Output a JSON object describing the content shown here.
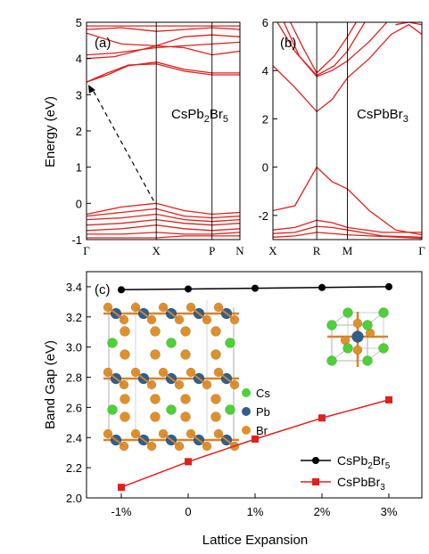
{
  "figure": {
    "colors": {
      "band": "#e0201c",
      "cspb2br5": "#000000",
      "cspbbr3": "#e0201c",
      "cs": "#4cd137",
      "pb": "#2f5f8a",
      "br": "#e0902a"
    }
  },
  "chart_data": [
    {
      "type": "line",
      "panel_label": "(a)",
      "compound": "CsPb2Br5",
      "compound_parts": [
        "CsPb",
        "2",
        "Br",
        "5"
      ],
      "ylabel": "Energy (eV)",
      "ylim": [
        -1,
        5
      ],
      "yticks": [
        "-1",
        "0",
        "1",
        "2",
        "3",
        "4",
        "5"
      ],
      "xticks": [
        "Γ",
        "X",
        "P",
        "N"
      ],
      "k_positions": [
        0,
        1,
        1.8,
        2.2
      ],
      "indirect_gap_arrow": {
        "from": [
          0,
          3.35
        ],
        "to": [
          1,
          0.0
        ]
      },
      "bands": [
        [
          [
            0,
            -0.95
          ],
          [
            0.5,
            -0.95
          ],
          [
            1,
            -0.95
          ],
          [
            1.4,
            -0.9
          ],
          [
            1.8,
            -0.9
          ],
          [
            2.2,
            -0.9
          ]
        ],
        [
          [
            0,
            -0.85
          ],
          [
            0.5,
            -0.85
          ],
          [
            1,
            -0.8
          ],
          [
            1.4,
            -0.85
          ],
          [
            1.8,
            -0.85
          ],
          [
            2.2,
            -0.8
          ]
        ],
        [
          [
            0,
            -0.75
          ],
          [
            0.5,
            -0.7
          ],
          [
            1,
            -0.6
          ],
          [
            1.4,
            -0.7
          ],
          [
            1.8,
            -0.75
          ],
          [
            2.2,
            -0.7
          ]
        ],
        [
          [
            0,
            -0.6
          ],
          [
            0.5,
            -0.55
          ],
          [
            1,
            -0.45
          ],
          [
            1.4,
            -0.55
          ],
          [
            1.8,
            -0.6
          ],
          [
            2.2,
            -0.55
          ]
        ],
        [
          [
            0,
            -0.45
          ],
          [
            0.5,
            -0.4
          ],
          [
            1,
            -0.3
          ],
          [
            1.4,
            -0.45
          ],
          [
            1.8,
            -0.5
          ],
          [
            2.2,
            -0.45
          ]
        ],
        [
          [
            0,
            -0.35
          ],
          [
            0.5,
            -0.25
          ],
          [
            1,
            -0.15
          ],
          [
            1.4,
            -0.35
          ],
          [
            1.8,
            -0.4
          ],
          [
            2.2,
            -0.35
          ]
        ],
        [
          [
            0,
            -0.3
          ],
          [
            0.5,
            -0.1
          ],
          [
            1,
            0.0
          ],
          [
            1.4,
            -0.2
          ],
          [
            1.8,
            -0.3
          ],
          [
            2.2,
            -0.25
          ]
        ],
        [
          [
            0,
            3.35
          ],
          [
            0.3,
            3.55
          ],
          [
            0.6,
            3.8
          ],
          [
            1,
            3.9
          ],
          [
            1.4,
            3.7
          ],
          [
            1.8,
            3.6
          ],
          [
            2.2,
            3.6
          ]
        ],
        [
          [
            0,
            3.35
          ],
          [
            0.3,
            3.6
          ],
          [
            0.6,
            3.82
          ],
          [
            1,
            3.85
          ],
          [
            1.4,
            3.65
          ],
          [
            1.8,
            3.55
          ],
          [
            2.2,
            3.55
          ]
        ],
        [
          [
            0,
            4.0
          ],
          [
            0.4,
            4.05
          ],
          [
            1,
            4.35
          ],
          [
            1.4,
            4.3
          ],
          [
            1.8,
            4.1
          ],
          [
            2.2,
            4.2
          ]
        ],
        [
          [
            0,
            4.1
          ],
          [
            0.4,
            4.15
          ],
          [
            1,
            4.3
          ],
          [
            1.4,
            4.35
          ],
          [
            1.8,
            4.4
          ],
          [
            2.2,
            4.45
          ]
        ],
        [
          [
            0,
            4.7
          ],
          [
            0.5,
            4.4
          ],
          [
            1,
            4.35
          ],
          [
            1.4,
            4.6
          ],
          [
            1.8,
            4.65
          ],
          [
            2.2,
            4.6
          ]
        ],
        [
          [
            0,
            4.8
          ],
          [
            0.5,
            4.85
          ],
          [
            1,
            4.75
          ],
          [
            1.4,
            4.8
          ],
          [
            1.8,
            4.85
          ],
          [
            2.2,
            4.8
          ]
        ],
        [
          [
            0,
            4.9
          ],
          [
            0.5,
            4.9
          ],
          [
            1,
            4.9
          ],
          [
            1.4,
            4.9
          ],
          [
            1.8,
            4.9
          ],
          [
            2.2,
            4.9
          ]
        ]
      ]
    },
    {
      "type": "line",
      "panel_label": "(b)",
      "compound": "CsPbBr3",
      "compound_parts": [
        "CsPbBr",
        "3"
      ],
      "ylim": [
        -3,
        6
      ],
      "yticks": [
        "-2",
        "0",
        "2",
        "4",
        "6"
      ],
      "xticks": [
        "X",
        "R",
        "M",
        "Γ"
      ],
      "k_positions": [
        0,
        1,
        1.7,
        3.4
      ],
      "bands": [
        [
          [
            0,
            -1.8
          ],
          [
            0.5,
            -1.6
          ],
          [
            1,
            0.0
          ],
          [
            1.35,
            -0.6
          ],
          [
            1.7,
            -0.9
          ],
          [
            2.2,
            -1.8
          ],
          [
            2.8,
            -2.6
          ],
          [
            3.4,
            -2.8
          ]
        ],
        [
          [
            0,
            -2.6
          ],
          [
            0.5,
            -2.5
          ],
          [
            1,
            -2.2
          ],
          [
            1.35,
            -2.3
          ],
          [
            1.7,
            -2.5
          ],
          [
            2.5,
            -2.7
          ],
          [
            3.4,
            -2.7
          ]
        ],
        [
          [
            0,
            -2.75
          ],
          [
            0.5,
            -2.7
          ],
          [
            1,
            -2.45
          ],
          [
            1.35,
            -2.5
          ],
          [
            1.7,
            -2.6
          ],
          [
            2.5,
            -2.85
          ],
          [
            3.4,
            -2.9
          ]
        ],
        [
          [
            0,
            -2.9
          ],
          [
            0.5,
            -2.85
          ],
          [
            1,
            -2.7
          ],
          [
            1.7,
            -2.8
          ],
          [
            3.4,
            -2.95
          ]
        ],
        [
          [
            0,
            4.2
          ],
          [
            0.5,
            3.3
          ],
          [
            1,
            2.3
          ],
          [
            1.35,
            2.8
          ],
          [
            1.7,
            3.7
          ],
          [
            2.2,
            4.5
          ],
          [
            2.7,
            5.5
          ],
          [
            3.1,
            5.9
          ],
          [
            3.4,
            5.5
          ]
        ],
        [
          [
            0.1,
            6.0
          ],
          [
            0.5,
            4.8
          ],
          [
            1,
            3.75
          ],
          [
            1.35,
            4.0
          ],
          [
            1.7,
            4.4
          ],
          [
            2.2,
            5.2
          ],
          [
            2.6,
            6.0
          ]
        ],
        [
          [
            0.25,
            6.0
          ],
          [
            0.6,
            4.6
          ],
          [
            1,
            3.8
          ],
          [
            1.4,
            4.2
          ],
          [
            1.7,
            4.8
          ],
          [
            2.1,
            6.0
          ]
        ],
        [
          [
            0.4,
            6.0
          ],
          [
            0.7,
            4.9
          ],
          [
            1,
            3.9
          ],
          [
            1.4,
            4.6
          ],
          [
            1.7,
            5.4
          ],
          [
            1.9,
            6.0
          ]
        ],
        [
          [
            2.8,
            5.9
          ],
          [
            3.1,
            6.0
          ],
          [
            3.4,
            5.9
          ]
        ]
      ]
    },
    {
      "type": "line",
      "panel_label": "(c)",
      "ylabel": "Band Gap (eV)",
      "xlabel": "Lattice Expansion",
      "categories": [
        "-1%",
        "0",
        "1%",
        "2%",
        "3%"
      ],
      "ylim": [
        2.0,
        3.5
      ],
      "yticks": [
        "2.0",
        "2.2",
        "2.4",
        "2.6",
        "2.8",
        "3.0",
        "3.2",
        "3.4"
      ],
      "series": [
        {
          "name": "CsPb2Br5",
          "name_parts": [
            "CsPb",
            "2",
            "Br",
            "5"
          ],
          "values": [
            3.38,
            3.385,
            3.39,
            3.395,
            3.4
          ]
        },
        {
          "name": "CsPbBr3",
          "name_parts": [
            "CsPbBr",
            "3"
          ],
          "values": [
            2.07,
            2.24,
            2.39,
            2.53,
            2.65
          ]
        }
      ],
      "atom_legend": [
        "Cs",
        "Pb",
        "Br"
      ]
    }
  ]
}
